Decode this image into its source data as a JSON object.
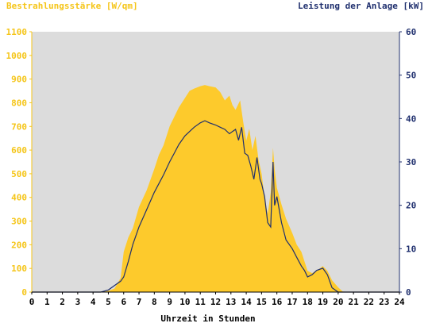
{
  "chart_data": {
    "type": "area",
    "title_left": "Bestrahlungsstärke [W/qm]",
    "title_right": "Leistung der Anlage [kW]",
    "xlabel": "Uhrzeit in Stunden",
    "xlim": [
      0,
      24
    ],
    "ylim_left": [
      0,
      1100
    ],
    "ylim_right": [
      0,
      60
    ],
    "x_ticks": [
      0,
      1,
      2,
      3,
      4,
      5,
      6,
      7,
      8,
      9,
      10,
      11,
      12,
      13,
      14,
      15,
      16,
      17,
      18,
      19,
      20,
      21,
      22,
      23,
      24
    ],
    "y_left_ticks": [
      0,
      100,
      200,
      300,
      400,
      500,
      600,
      700,
      800,
      900,
      1000,
      1100
    ],
    "y_right_ticks": [
      0,
      10,
      20,
      30,
      40,
      50,
      60
    ],
    "grid": false,
    "colors": {
      "plot_bg": "#dcdcdc",
      "irradiance": "#fdca2c",
      "power": "#1f2f6e",
      "left_axis_text": "#f5c518",
      "right_axis_text": "#1f2f6e"
    },
    "series": [
      {
        "name": "Bestrahlungsstärke [W/qm]",
        "axis": "left",
        "type": "area",
        "x": [
          0,
          4.5,
          5,
          5.4,
          5.8,
          6.0,
          6.3,
          6.6,
          7.0,
          7.5,
          8.0,
          8.3,
          8.6,
          9.0,
          9.3,
          9.6,
          10.0,
          10.3,
          10.6,
          11.0,
          11.3,
          11.6,
          12.0,
          12.3,
          12.6,
          12.9,
          13.1,
          13.3,
          13.6,
          13.8,
          14.0,
          14.2,
          14.4,
          14.6,
          14.8,
          15.0,
          15.2,
          15.4,
          15.6,
          15.75,
          15.85,
          16.0,
          16.3,
          16.6,
          17.0,
          17.3,
          17.6,
          17.8,
          18.0,
          18.3,
          18.6,
          19.0,
          19.3,
          19.6,
          20.0,
          20.3,
          21,
          24
        ],
        "y": [
          0,
          0,
          5,
          15,
          60,
          170,
          230,
          270,
          360,
          430,
          520,
          580,
          620,
          700,
          740,
          780,
          820,
          850,
          860,
          870,
          875,
          870,
          865,
          845,
          810,
          830,
          790,
          770,
          810,
          720,
          640,
          690,
          600,
          660,
          560,
          500,
          400,
          330,
          420,
          610,
          520,
          440,
          370,
          310,
          250,
          200,
          170,
          130,
          90,
          80,
          90,
          110,
          90,
          50,
          20,
          2,
          0,
          0
        ]
      },
      {
        "name": "Leistung der Anlage [kW]",
        "axis": "right",
        "type": "line",
        "x": [
          0,
          4.5,
          5.0,
          5.4,
          5.8,
          6.0,
          6.3,
          6.6,
          7.0,
          7.5,
          8.0,
          8.3,
          8.6,
          9.0,
          9.3,
          9.6,
          10.0,
          10.3,
          10.6,
          11.0,
          11.3,
          11.6,
          12.0,
          12.3,
          12.6,
          12.9,
          13.1,
          13.3,
          13.5,
          13.7,
          13.9,
          14.1,
          14.3,
          14.5,
          14.7,
          14.9,
          15.0,
          15.2,
          15.4,
          15.6,
          15.75,
          15.85,
          16.0,
          16.3,
          16.6,
          17.0,
          17.3,
          17.6,
          17.8,
          18.0,
          18.3,
          18.6,
          19.0,
          19.3,
          19.6,
          20.0,
          20.3,
          21,
          24
        ],
        "y": [
          0,
          0,
          0.5,
          1.5,
          2.5,
          3.5,
          7,
          11,
          15,
          19,
          23,
          25,
          27,
          30,
          32,
          34,
          36,
          37,
          38,
          39,
          39.5,
          39,
          38.5,
          38,
          37.5,
          36.5,
          37,
          37.5,
          35,
          38,
          32,
          31.5,
          29,
          26,
          31,
          26,
          25,
          22,
          16,
          15,
          30,
          20,
          22,
          16,
          12,
          10,
          8,
          6,
          5,
          3.5,
          4,
          5,
          5.5,
          4,
          1,
          0,
          0,
          0,
          0
        ]
      }
    ]
  }
}
